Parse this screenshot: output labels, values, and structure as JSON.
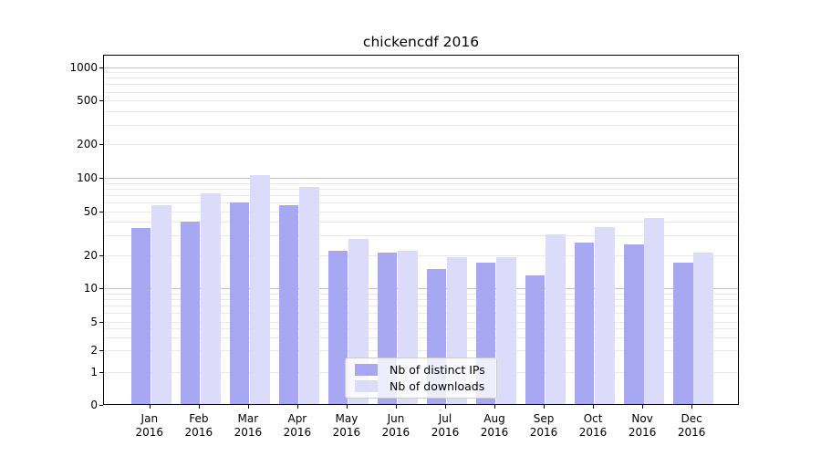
{
  "figure": {
    "title": "chickencdf 2016"
  },
  "chart_data": {
    "type": "bar",
    "title": "chickencdf 2016",
    "yscale": "symlog",
    "ylim": [
      0,
      1000
    ],
    "grid": true,
    "legend_position": "inside lower center",
    "year": "2016",
    "months": [
      "Jan",
      "Feb",
      "Mar",
      "Apr",
      "May",
      "Jun",
      "Jul",
      "Aug",
      "Sep",
      "Oct",
      "Nov",
      "Dec"
    ],
    "ytick_labels": [
      "1000",
      "500",
      "200",
      "100",
      "50",
      "20",
      "10",
      "5",
      "2",
      "1",
      "0"
    ],
    "series": [
      {
        "name": "Nb of distinct IPs",
        "color": "#a7a7f2",
        "values": [
          35,
          40,
          60,
          57,
          22,
          21,
          15,
          17,
          13,
          26,
          25,
          17
        ]
      },
      {
        "name": "Nb of downloads",
        "color": "#dcdcfa",
        "values": [
          57,
          72,
          106,
          82,
          28,
          22,
          19,
          19,
          31,
          36,
          43,
          21
        ]
      }
    ]
  }
}
